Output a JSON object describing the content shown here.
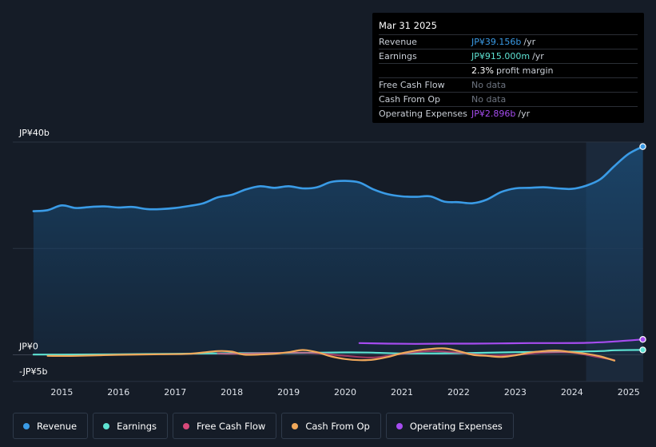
{
  "tooltip": {
    "date": "Mar 31 2025",
    "rows": [
      {
        "key": "Revenue",
        "value": "JP¥39.156b",
        "unit": "/yr",
        "color": "#3a9be6"
      },
      {
        "key": "Earnings",
        "value": "JP¥915.000m",
        "unit": "/yr",
        "color": "#5ee2d2"
      },
      {
        "key": "",
        "value": "2.3%",
        "unit": "profit margin",
        "color": "#ffffff"
      },
      {
        "key": "Free Cash Flow",
        "nodata": "No data"
      },
      {
        "key": "Cash From Op",
        "nodata": "No data"
      },
      {
        "key": "Operating Expenses",
        "value": "JP¥2.896b",
        "unit": "/yr",
        "color": "#a64cf0"
      }
    ]
  },
  "legend": [
    {
      "label": "Revenue",
      "color": "#3a9be6"
    },
    {
      "label": "Earnings",
      "color": "#5ee2d2"
    },
    {
      "label": "Free Cash Flow",
      "color": "#d8497a"
    },
    {
      "label": "Cash From Op",
      "color": "#f0a85a"
    },
    {
      "label": "Operating Expenses",
      "color": "#a64cf0"
    }
  ],
  "chart_data": {
    "type": "line",
    "y_tick_labels": [
      "JP¥40b",
      "JP¥0",
      "-JP¥5b"
    ],
    "ylim": [
      -5,
      40
    ],
    "x_tick_labels": [
      "2015",
      "2016",
      "2017",
      "2018",
      "2019",
      "2020",
      "2021",
      "2022",
      "2023",
      "2024",
      "2025"
    ],
    "xlim": [
      2014.1,
      2025.25
    ],
    "forecast_start": 2024.25,
    "series": [
      {
        "name": "Revenue",
        "color": "#3a9be6",
        "filled": true,
        "points": [
          [
            2014.5,
            27.0
          ],
          [
            2014.75,
            27.2
          ],
          [
            2015.0,
            28.1
          ],
          [
            2015.25,
            27.6
          ],
          [
            2015.5,
            27.8
          ],
          [
            2015.75,
            27.9
          ],
          [
            2016.0,
            27.7
          ],
          [
            2016.25,
            27.8
          ],
          [
            2016.5,
            27.4
          ],
          [
            2016.75,
            27.4
          ],
          [
            2017.0,
            27.6
          ],
          [
            2017.25,
            28.0
          ],
          [
            2017.5,
            28.5
          ],
          [
            2017.75,
            29.6
          ],
          [
            2018.0,
            30.1
          ],
          [
            2018.25,
            31.1
          ],
          [
            2018.5,
            31.7
          ],
          [
            2018.75,
            31.4
          ],
          [
            2019.0,
            31.7
          ],
          [
            2019.25,
            31.3
          ],
          [
            2019.5,
            31.5
          ],
          [
            2019.75,
            32.5
          ],
          [
            2020.0,
            32.7
          ],
          [
            2020.25,
            32.4
          ],
          [
            2020.5,
            31.1
          ],
          [
            2020.75,
            30.2
          ],
          [
            2021.0,
            29.8
          ],
          [
            2021.25,
            29.7
          ],
          [
            2021.5,
            29.8
          ],
          [
            2021.75,
            28.8
          ],
          [
            2022.0,
            28.7
          ],
          [
            2022.25,
            28.5
          ],
          [
            2022.5,
            29.2
          ],
          [
            2022.75,
            30.6
          ],
          [
            2023.0,
            31.3
          ],
          [
            2023.25,
            31.4
          ],
          [
            2023.5,
            31.5
          ],
          [
            2023.75,
            31.3
          ],
          [
            2024.0,
            31.2
          ],
          [
            2024.25,
            31.8
          ],
          [
            2024.5,
            33.0
          ],
          [
            2024.75,
            35.5
          ],
          [
            2025.0,
            37.8
          ],
          [
            2025.25,
            39.156
          ]
        ]
      },
      {
        "name": "Earnings",
        "color": "#5ee2d2",
        "points": [
          [
            2014.5,
            0.05
          ],
          [
            2015.0,
            0.05
          ],
          [
            2016.0,
            0.1
          ],
          [
            2017.0,
            0.2
          ],
          [
            2018.0,
            0.3
          ],
          [
            2019.0,
            0.35
          ],
          [
            2020.0,
            0.45
          ],
          [
            2020.5,
            0.4
          ],
          [
            2021.0,
            0.25
          ],
          [
            2022.0,
            0.3
          ],
          [
            2023.0,
            0.5
          ],
          [
            2024.0,
            0.6
          ],
          [
            2024.5,
            0.7
          ],
          [
            2024.75,
            0.85
          ],
          [
            2025.25,
            0.915
          ]
        ]
      },
      {
        "name": "Cash From Op",
        "color": "#f0a85a",
        "points": [
          [
            2014.75,
            -0.2
          ],
          [
            2015.25,
            -0.2
          ],
          [
            2016.0,
            0.0
          ],
          [
            2016.75,
            0.1
          ],
          [
            2017.25,
            0.2
          ],
          [
            2017.75,
            0.7
          ],
          [
            2018.0,
            0.6
          ],
          [
            2018.25,
            0.0
          ],
          [
            2018.75,
            0.2
          ],
          [
            2019.0,
            0.5
          ],
          [
            2019.25,
            0.9
          ],
          [
            2019.5,
            0.5
          ],
          [
            2019.75,
            -0.3
          ],
          [
            2020.0,
            -0.8
          ],
          [
            2020.25,
            -1.0
          ],
          [
            2020.5,
            -0.9
          ],
          [
            2020.75,
            -0.4
          ],
          [
            2021.0,
            0.3
          ],
          [
            2021.25,
            0.8
          ],
          [
            2021.5,
            1.1
          ],
          [
            2021.75,
            1.2
          ],
          [
            2022.0,
            0.7
          ],
          [
            2022.25,
            0.0
          ],
          [
            2022.5,
            -0.2
          ],
          [
            2022.75,
            -0.4
          ],
          [
            2023.0,
            -0.1
          ],
          [
            2023.25,
            0.4
          ],
          [
            2023.5,
            0.7
          ],
          [
            2023.75,
            0.8
          ],
          [
            2024.0,
            0.5
          ],
          [
            2024.25,
            0.2
          ],
          [
            2024.5,
            -0.3
          ],
          [
            2024.75,
            -1.1
          ]
        ]
      },
      {
        "name": "Free Cash Flow",
        "color": "#d8497a",
        "points": [
          [
            2017.75,
            0.3
          ],
          [
            2018.0,
            0.2
          ],
          [
            2019.0,
            0.4
          ],
          [
            2019.5,
            0.3
          ],
          [
            2020.0,
            -0.2
          ],
          [
            2020.5,
            -0.5
          ],
          [
            2021.0,
            0.2
          ],
          [
            2021.5,
            0.7
          ],
          [
            2022.0,
            0.4
          ],
          [
            2022.5,
            -0.1
          ],
          [
            2023.0,
            0.0
          ],
          [
            2023.5,
            0.4
          ],
          [
            2024.0,
            0.4
          ],
          [
            2024.5,
            -0.5
          ],
          [
            2024.75,
            -1.0
          ]
        ]
      },
      {
        "name": "Operating Expenses",
        "color": "#a64cf0",
        "points": [
          [
            2020.25,
            2.2
          ],
          [
            2020.75,
            2.1
          ],
          [
            2021.25,
            2.05
          ],
          [
            2021.75,
            2.1
          ],
          [
            2022.25,
            2.1
          ],
          [
            2022.75,
            2.15
          ],
          [
            2023.25,
            2.2
          ],
          [
            2023.75,
            2.2
          ],
          [
            2024.25,
            2.25
          ],
          [
            2024.75,
            2.5
          ],
          [
            2025.25,
            2.896
          ]
        ]
      }
    ]
  }
}
